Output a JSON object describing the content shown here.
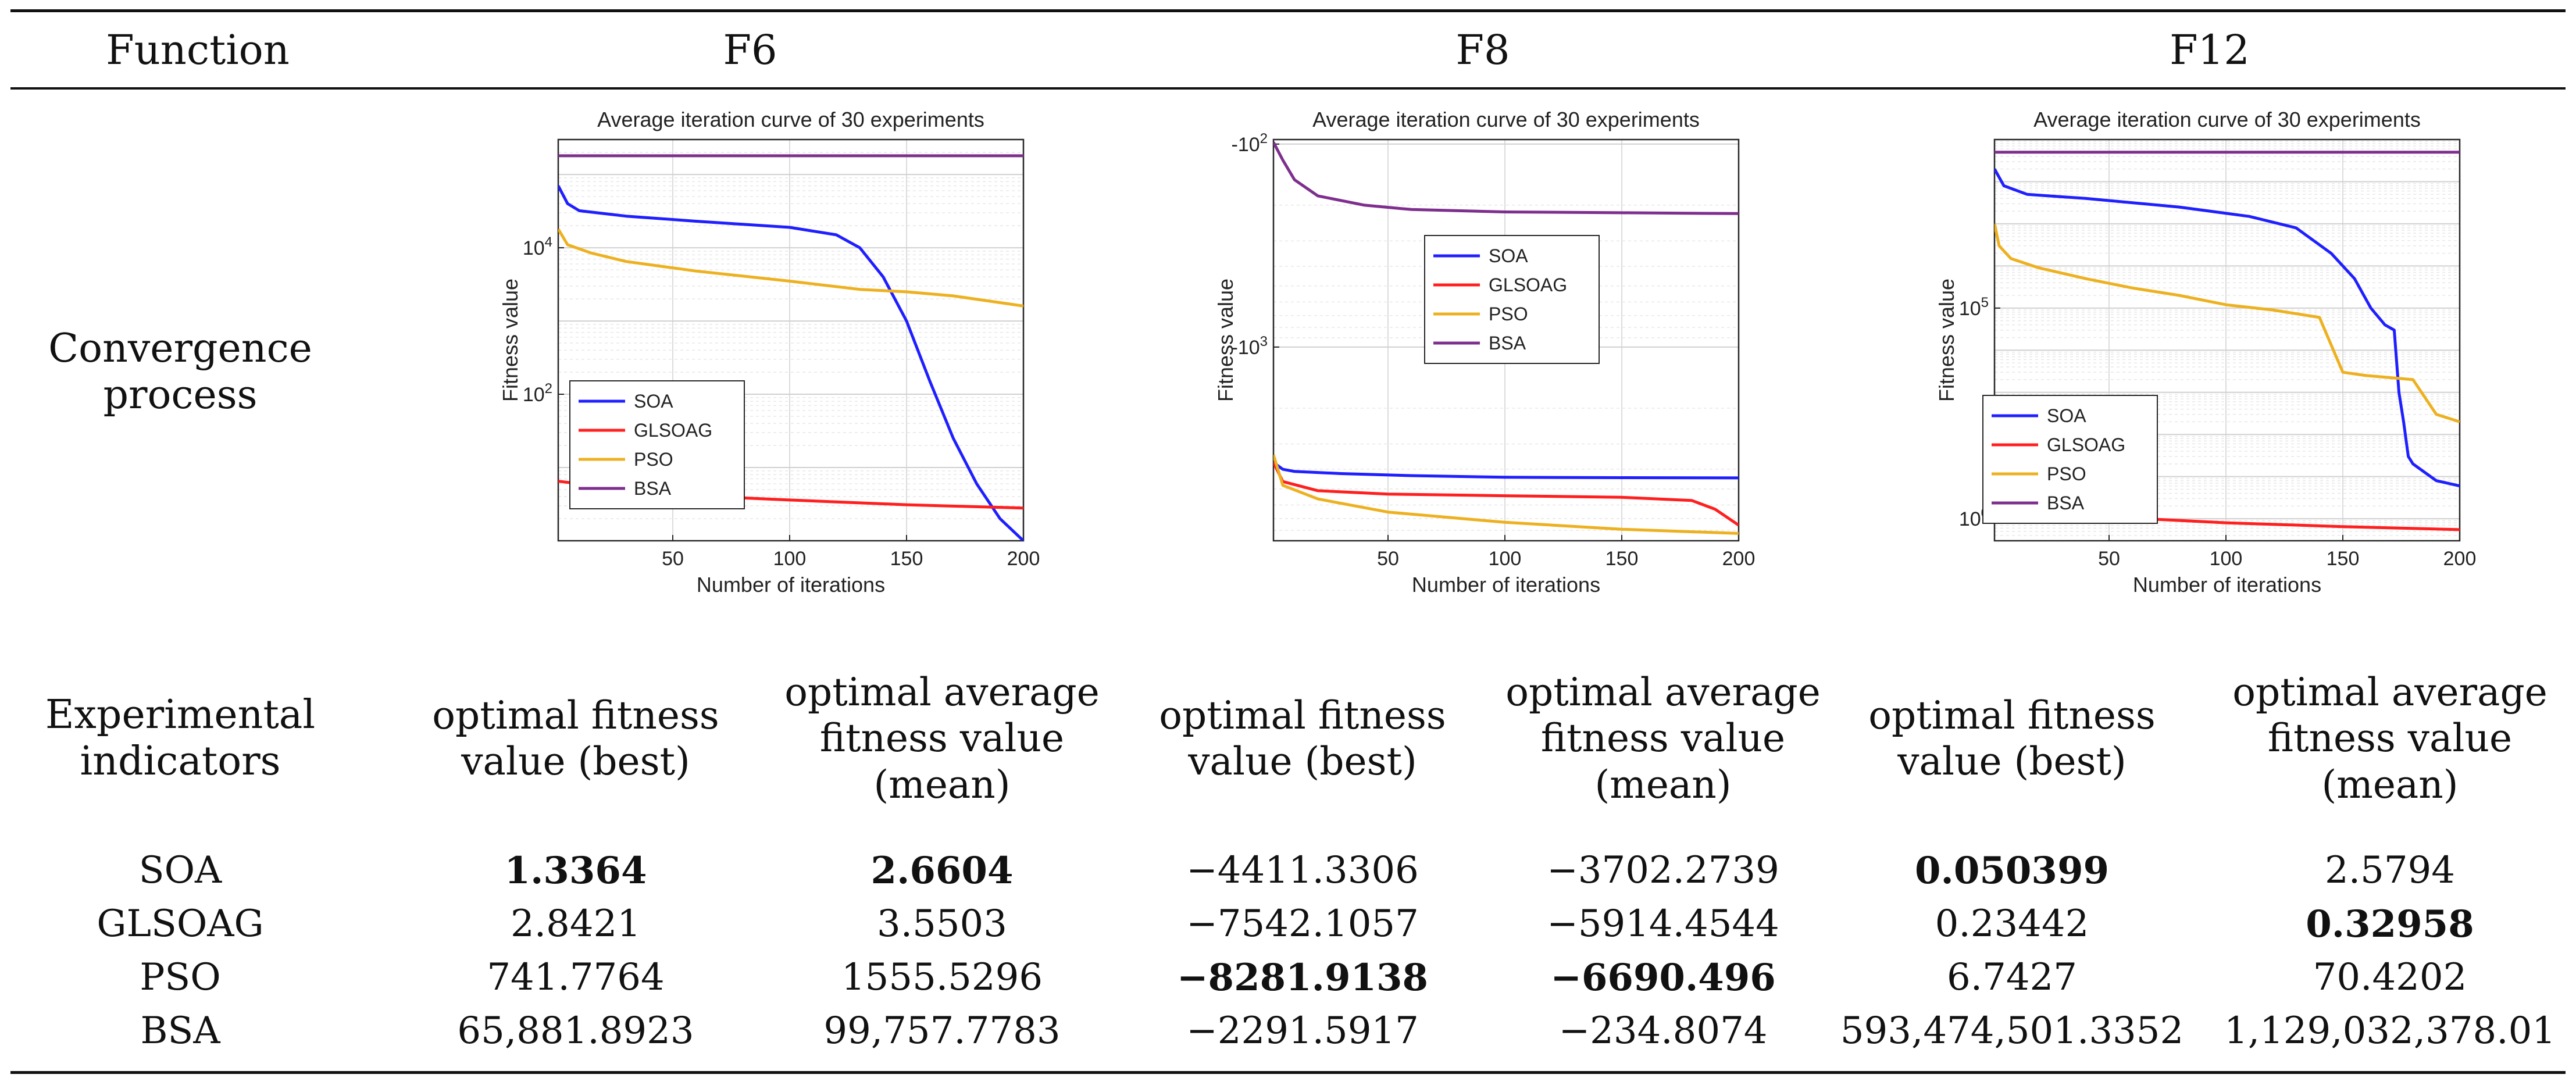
{
  "table": {
    "header": {
      "function_label": "Function",
      "functions": [
        "F6",
        "F8",
        "F12"
      ]
    },
    "row_convergence_label": "Convergence process",
    "row_indicators_label": "Experimental indicators",
    "indicator_headers": [
      "optimal fitness value (best)",
      "optimal average fitness value (mean)",
      "optimal fitness value (best)",
      "optimal average fitness value (mean)",
      "optimal fitness value (best)",
      "optimal average fitness value (mean)"
    ],
    "rows": [
      {
        "name": "SOA",
        "values": [
          "1.3364",
          "2.6604",
          "−4411.3306",
          "−3702.2739",
          "0.050399",
          "2.5794"
        ],
        "bold": [
          true,
          true,
          false,
          false,
          true,
          false
        ]
      },
      {
        "name": "GLSOAG",
        "values": [
          "2.8421",
          "3.5503",
          "−7542.1057",
          "−5914.4544",
          "0.23442",
          "0.32958"
        ],
        "bold": [
          false,
          false,
          false,
          false,
          false,
          true
        ]
      },
      {
        "name": "PSO",
        "values": [
          "741.7764",
          "1555.5296",
          "−8281.9138",
          "−6690.496",
          "6.7427",
          "70.4202"
        ],
        "bold": [
          false,
          false,
          true,
          true,
          false,
          false
        ]
      },
      {
        "name": "BSA",
        "values": [
          "65,881.8923",
          "99,757.7783",
          "−2291.5917",
          "−234.8074",
          "593,474,501.3352",
          "1,129,032,378.01"
        ],
        "bold": [
          false,
          false,
          false,
          false,
          false,
          false
        ]
      }
    ]
  },
  "chart_data": [
    {
      "type": "line",
      "title": "Average iteration curve of 30 experiments",
      "xlabel": "Number of iterations",
      "ylabel": "Fitness value",
      "xlim": [
        1,
        200
      ],
      "xticks": [
        50,
        100,
        150,
        200
      ],
      "yscale": "log",
      "ylim": [
        1,
        300000
      ],
      "yticks": [
        {
          "value": 100,
          "label": "10^2"
        },
        {
          "value": 10000,
          "label": "10^4"
        }
      ],
      "grid": true,
      "legend": "lower-left",
      "series": [
        {
          "name": "SOA",
          "color": "#1f1fff",
          "x": [
            1,
            5,
            10,
            30,
            60,
            100,
            120,
            130,
            140,
            150,
            160,
            170,
            180,
            190,
            200
          ],
          "y": [
            70000,
            40000,
            32000,
            27000,
            23000,
            19000,
            15000,
            10000,
            4000,
            1000,
            150,
            25,
            6,
            2,
            1
          ]
        },
        {
          "name": "GLSOAG",
          "color": "#ff1f1f",
          "x": [
            1,
            10,
            30,
            60,
            100,
            150,
            200
          ],
          "y": [
            6.5,
            6,
            4.8,
            4.1,
            3.6,
            3.1,
            2.8
          ]
        },
        {
          "name": "PSO",
          "color": "#edb120",
          "x": [
            1,
            5,
            15,
            30,
            60,
            100,
            130,
            150,
            170,
            200
          ],
          "y": [
            18000,
            11000,
            8500,
            6500,
            4800,
            3500,
            2700,
            2500,
            2200,
            1600
          ]
        },
        {
          "name": "BSA",
          "color": "#7e2f8e",
          "x": [
            1,
            200
          ],
          "y": [
            180000,
            180000
          ]
        }
      ]
    },
    {
      "type": "line",
      "title": "Average iteration curve of 30 experiments",
      "xlabel": "Number of iterations",
      "ylabel": "Fitness value",
      "xlim": [
        1,
        200
      ],
      "xticks": [
        50,
        100,
        150,
        200
      ],
      "yscale": "negative-log",
      "ylim": [
        -95,
        -9000
      ],
      "yticks": [
        {
          "value": -100,
          "label": "-10^2"
        },
        {
          "value": -1000,
          "label": "-10^3"
        }
      ],
      "grid": true,
      "legend": "right",
      "series": [
        {
          "name": "SOA",
          "color": "#1f1fff",
          "x": [
            1,
            5,
            10,
            30,
            60,
            100,
            150,
            200
          ],
          "y": [
            -3700,
            -4000,
            -4100,
            -4200,
            -4300,
            -4380,
            -4400,
            -4411
          ]
        },
        {
          "name": "GLSOAG",
          "color": "#ff1f1f",
          "x": [
            1,
            5,
            20,
            50,
            100,
            150,
            180,
            190,
            200
          ],
          "y": [
            -3700,
            -4600,
            -5100,
            -5300,
            -5400,
            -5500,
            -5700,
            -6300,
            -7542
          ]
        },
        {
          "name": "PSO",
          "color": "#edb120",
          "x": [
            1,
            5,
            20,
            50,
            100,
            150,
            200
          ],
          "y": [
            -3400,
            -4800,
            -5600,
            -6500,
            -7300,
            -7900,
            -8282
          ]
        },
        {
          "name": "BSA",
          "color": "#7e2f8e",
          "x": [
            1,
            5,
            10,
            20,
            40,
            60,
            100,
            150,
            200
          ],
          "y": [
            -98,
            -120,
            -150,
            -180,
            -200,
            -210,
            -216,
            -218,
            -220
          ]
        }
      ]
    },
    {
      "type": "line",
      "title": "Average iteration curve of 30 experiments",
      "xlabel": "Number of iterations",
      "ylabel": "Fitness value",
      "xlim": [
        1,
        200
      ],
      "xticks": [
        50,
        100,
        150,
        200
      ],
      "yscale": "log",
      "ylim": [
        0.3,
        1000000000
      ],
      "yticks": [
        {
          "value": 1,
          "label": "10^0"
        },
        {
          "value": 100000,
          "label": "10^5"
        }
      ],
      "grid": true,
      "legend": "lower-left",
      "series": [
        {
          "name": "SOA",
          "color": "#1f1fff",
          "x": [
            1,
            5,
            15,
            40,
            80,
            110,
            130,
            145,
            155,
            162,
            168,
            172,
            174,
            176,
            178,
            180,
            190,
            200
          ],
          "y": [
            200000000,
            80000000,
            50000000,
            40000000,
            25000000,
            15000000,
            8000000,
            2000000,
            500000,
            100000,
            40000,
            30000,
            1000,
            200,
            30,
            20,
            8,
            6
          ]
        },
        {
          "name": "GLSOAG",
          "color": "#ff1f1f",
          "x": [
            1,
            5,
            20,
            50,
            100,
            150,
            200
          ],
          "y": [
            2,
            1.8,
            1.4,
            1.1,
            0.8,
            0.65,
            0.55
          ]
        },
        {
          "name": "PSO",
          "color": "#edb120",
          "x": [
            1,
            3,
            8,
            20,
            40,
            60,
            80,
            100,
            120,
            140,
            150,
            160,
            180,
            190,
            200
          ],
          "y": [
            10000000,
            3000000,
            1500000,
            900000,
            500000,
            300000,
            200000,
            120000,
            90000,
            60000,
            3000,
            2500,
            2000,
            300,
            200
          ]
        },
        {
          "name": "BSA",
          "color": "#7e2f8e",
          "x": [
            1,
            200
          ],
          "y": [
            500000000,
            500000000
          ]
        }
      ]
    }
  ]
}
